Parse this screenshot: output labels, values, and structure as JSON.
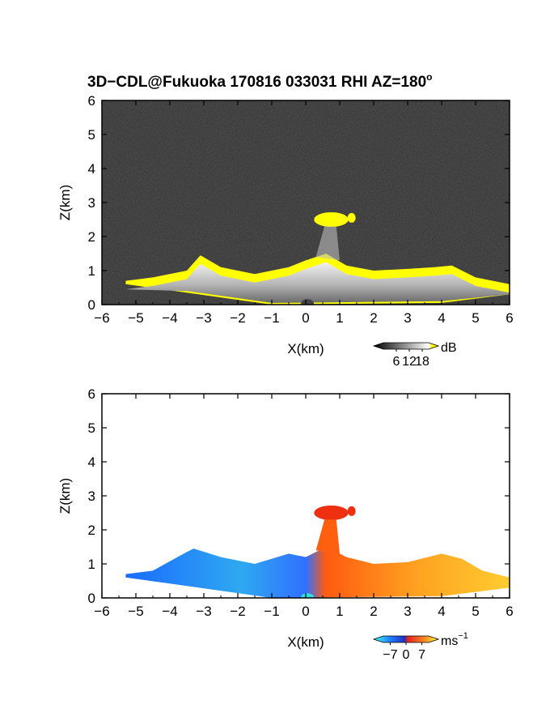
{
  "figure": {
    "title": "3D−CDL@Fukuoka 170816 033031 RHI AZ=180",
    "title_degree": "o"
  },
  "chart_data": [
    {
      "type": "heatmap",
      "name": "reflectivity",
      "xlabel": "X(km)",
      "ylabel": "Z(km)",
      "xlim": [
        -6,
        6
      ],
      "ylim": [
        0,
        6
      ],
      "xticks": [
        -6,
        -5,
        -4,
        -3,
        -2,
        -1,
        0,
        1,
        2,
        3,
        4,
        5,
        6
      ],
      "yticks": [
        0,
        1,
        2,
        3,
        4,
        5,
        6
      ],
      "xtick_labels": [
        "−6",
        "−5",
        "−4",
        "−3",
        "−2",
        "−1",
        "0",
        "1",
        "2",
        "3",
        "4",
        "5",
        "6"
      ],
      "ytick_labels": [
        "0",
        "1",
        "2",
        "3",
        "4",
        "5",
        "6"
      ],
      "background": "noise",
      "echo_top": [
        [
          -5.3,
          0.7
        ],
        [
          -4.5,
          0.8
        ],
        [
          -3.5,
          1.0
        ],
        [
          -3.1,
          1.45
        ],
        [
          -2.5,
          1.1
        ],
        [
          -1.5,
          0.9
        ],
        [
          -0.5,
          1.1
        ],
        [
          0.0,
          1.3
        ],
        [
          0.6,
          1.5
        ],
        [
          1.2,
          1.15
        ],
        [
          2.0,
          1.0
        ],
        [
          3.0,
          1.05
        ],
        [
          3.8,
          1.1
        ],
        [
          4.3,
          1.15
        ],
        [
          5.0,
          0.8
        ],
        [
          6.0,
          0.6
        ]
      ],
      "plume": {
        "x": [
          0.3,
          1.5
        ],
        "z": [
          1.8,
          2.7
        ]
      },
      "colorbar": {
        "ticks": [
          "6",
          "12",
          "18"
        ],
        "unit": "dB",
        "range": [
          0,
          21
        ]
      }
    },
    {
      "type": "heatmap",
      "name": "doppler-velocity",
      "xlabel": "X(km)",
      "ylabel": "Z(km)",
      "xlim": [
        -6,
        6
      ],
      "ylim": [
        0,
        6
      ],
      "xticks": [
        -6,
        -5,
        -4,
        -3,
        -2,
        -1,
        0,
        1,
        2,
        3,
        4,
        5,
        6
      ],
      "yticks": [
        0,
        1,
        2,
        3,
        4,
        5,
        6
      ],
      "xtick_labels": [
        "−6",
        "−5",
        "−4",
        "−3",
        "−2",
        "−1",
        "0",
        "1",
        "2",
        "3",
        "4",
        "5",
        "6"
      ],
      "ytick_labels": [
        "0",
        "1",
        "2",
        "3",
        "4",
        "5",
        "6"
      ],
      "echo_top": [
        [
          -5.3,
          0.7
        ],
        [
          -4.5,
          0.8
        ],
        [
          -3.5,
          1.35
        ],
        [
          -3.3,
          1.45
        ],
        [
          -2.5,
          1.2
        ],
        [
          -1.5,
          1.0
        ],
        [
          -0.5,
          1.3
        ],
        [
          0.0,
          1.2
        ],
        [
          0.6,
          1.5
        ],
        [
          1.2,
          1.2
        ],
        [
          2.0,
          1.0
        ],
        [
          3.0,
          1.05
        ],
        [
          4.0,
          1.3
        ],
        [
          4.6,
          1.15
        ],
        [
          5.2,
          0.8
        ],
        [
          6.0,
          0.6
        ]
      ],
      "plume": {
        "x": [
          0.3,
          1.5
        ],
        "z": [
          1.8,
          2.7
        ]
      },
      "colorbar": {
        "ticks": [
          "−7",
          "0",
          "7"
        ],
        "unit": "ms",
        "unit_exponent": "−1",
        "range": [
          -10,
          10
        ]
      }
    }
  ]
}
